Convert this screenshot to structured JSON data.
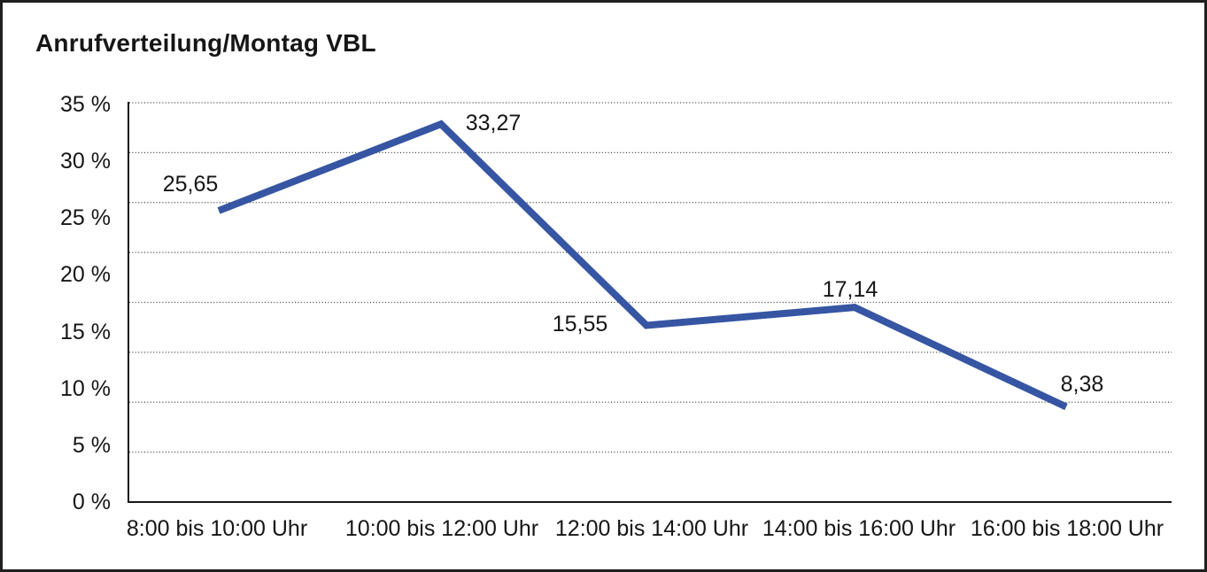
{
  "chart_data": {
    "type": "line",
    "title": "Anrufverteilung/Montag VBL",
    "categories": [
      "8:00 bis 10:00 Uhr",
      "10:00 bis 12:00 Uhr",
      "12:00 bis 14:00 Uhr",
      "14:00 bis 16:00 Uhr",
      "16:00 bis 18:00 Uhr"
    ],
    "values": [
      25.65,
      33.27,
      15.55,
      17.14,
      8.38
    ],
    "point_labels": [
      "25,65",
      "33,27",
      "15,55",
      "17,14",
      "8,38"
    ],
    "y_tick_labels": [
      "35 %",
      "30 %",
      "25 %",
      "20 %",
      "15 %",
      "10 %",
      "5 %",
      "0 %"
    ],
    "ylim": [
      0,
      35
    ],
    "xlabel": "",
    "ylabel": "",
    "unit": "%",
    "decimal_separator": ",",
    "grid": "horizontal-dotted",
    "legend": "none",
    "markers": "none",
    "colors": {
      "line": "#3655A3",
      "text": "#161616",
      "grid": "#3b3b3b",
      "axis": "#161616",
      "frame_border": "#1f1f1f",
      "background": "#ffffff"
    }
  }
}
